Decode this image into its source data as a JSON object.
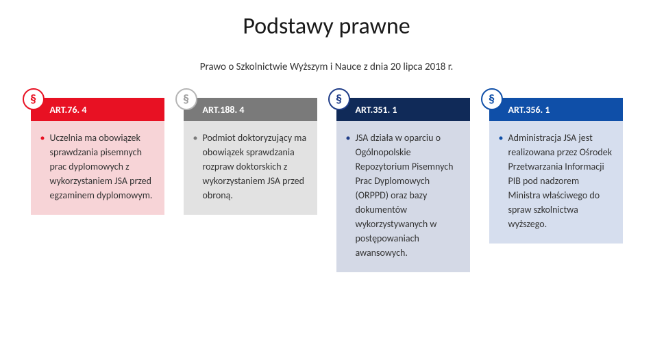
{
  "title": "Podstawy prawne",
  "subtitle": "Prawo o Szkolnictwie Wyższym i Nauce z dnia 20 lipca 2018 r.",
  "badge_symbol": "§",
  "cards": [
    {
      "article": "ART.76. 4",
      "text": "Uczelnia ma obowiązek sprawdzania pisemnych prac dyplomowych z wykorzystaniem JSA przed egzaminem dyplomowym.",
      "badge_color": "#e81123",
      "badge_border": "#e81123",
      "header_bg": "#e81123",
      "body_bg": "#f7d4d7",
      "bullet_color": "#e81123",
      "text_color": "#333333"
    },
    {
      "article": "ART.188. 4",
      "text": "Podmiot doktoryzujący ma obowiązek sprawdzania rozpraw doktorskich z wykorzystaniem JSA przed obroną.",
      "badge_color": "#9e9e9e",
      "badge_border": "#b5b5b5",
      "header_bg": "#7a7a7a",
      "body_bg": "#e2e2e2",
      "bullet_color": "#7a7a7a",
      "text_color": "#333333"
    },
    {
      "article": "ART.351. 1",
      "text": "JSA działa w oparciu o Ogólnopolskie Repozytorium Pisemnych Prac Dyplomowych (ORPPD) oraz bazy dokumentów wykorzystywanych w postępowaniach awansowych.",
      "badge_color": "#1f3c88",
      "badge_border": "#1f3c88",
      "header_bg": "#102a58",
      "body_bg": "#d4d9e6",
      "bullet_color": "#1f3c88",
      "text_color": "#333333"
    },
    {
      "article": "ART.356. 1",
      "text": "Administracja JSA jest realizowana przez Ośrodek Przetwarzania Informacji PIB pod nadzorem Ministra właściwego do spraw szkolnictwa wyższego.",
      "badge_color": "#0f4fa8",
      "badge_border": "#0f4fa8",
      "header_bg": "#0f4fa8",
      "body_bg": "#d6deee",
      "bullet_color": "#0f4fa8",
      "text_color": "#333333"
    }
  ]
}
